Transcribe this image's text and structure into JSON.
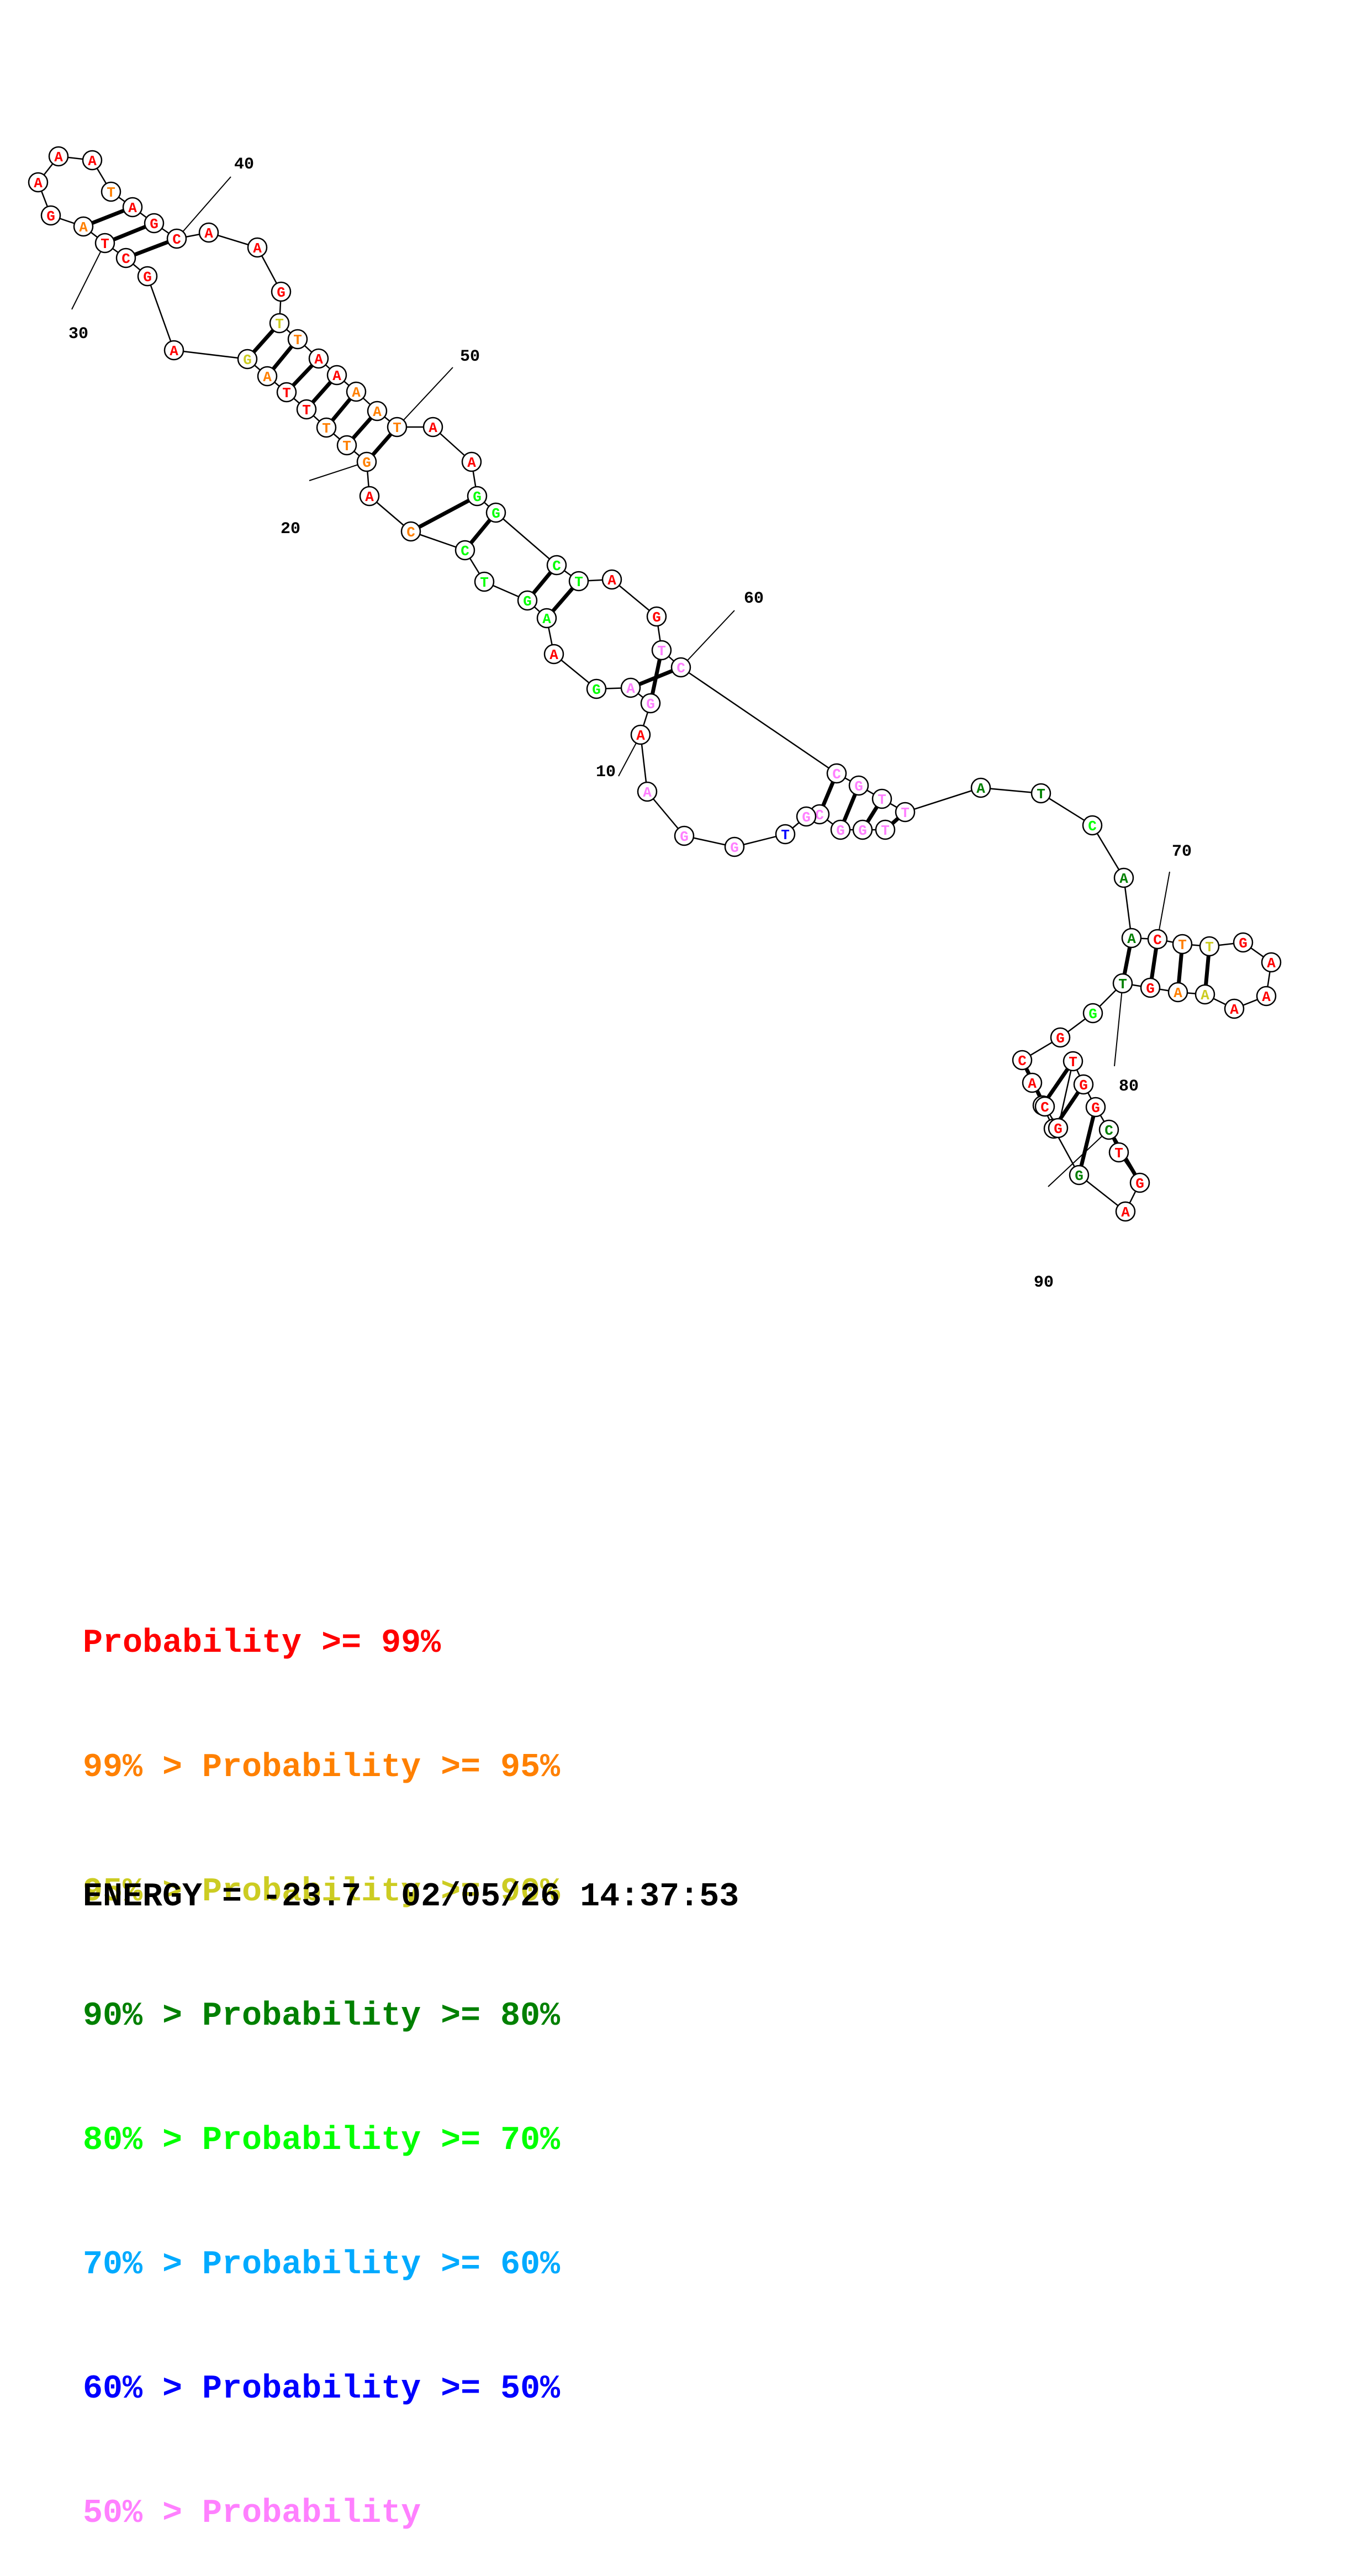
{
  "structure": {
    "nucleotides": [
      {
        "n": 1,
        "base": "T",
        "color": "pink"
      },
      {
        "n": 2,
        "base": "G",
        "color": "pink"
      },
      {
        "n": 3,
        "base": "G",
        "color": "pink"
      },
      {
        "n": 4,
        "base": "C",
        "color": "pink"
      },
      {
        "n": 5,
        "base": "G",
        "color": "pink"
      },
      {
        "n": 6,
        "base": "T",
        "color": "blue"
      },
      {
        "n": 7,
        "base": "G",
        "color": "pink"
      },
      {
        "n": 8,
        "base": "G",
        "color": "pink"
      },
      {
        "n": 9,
        "base": "A",
        "color": "pink"
      },
      {
        "n": 10,
        "base": "A",
        "color": "red"
      },
      {
        "n": 11,
        "base": "G",
        "color": "pink"
      },
      {
        "n": 12,
        "base": "A",
        "color": "pink"
      },
      {
        "n": 13,
        "base": "G",
        "color": "light_green"
      },
      {
        "n": 14,
        "base": "A",
        "color": "red"
      },
      {
        "n": 15,
        "base": "A",
        "color": "light_green"
      },
      {
        "n": 16,
        "base": "G",
        "color": "light_green"
      },
      {
        "n": 17,
        "base": "T",
        "color": "light_green"
      },
      {
        "n": 18,
        "base": "C",
        "color": "light_green"
      },
      {
        "n": 19,
        "base": "C",
        "color": "orange"
      },
      {
        "n": 20,
        "base": "A",
        "color": "red"
      },
      {
        "n": 21,
        "base": "G",
        "color": "orange"
      },
      {
        "n": 22,
        "base": "T",
        "color": "orange"
      },
      {
        "n": 23,
        "base": "T",
        "color": "orange"
      },
      {
        "n": 24,
        "base": "T",
        "color": "red"
      },
      {
        "n": 25,
        "base": "T",
        "color": "red"
      },
      {
        "n": 26,
        "base": "A",
        "color": "orange"
      },
      {
        "n": 27,
        "base": "G",
        "color": "yellow"
      },
      {
        "n": 28,
        "base": "A",
        "color": "red"
      },
      {
        "n": 29,
        "base": "G",
        "color": "red"
      },
      {
        "n": 30,
        "base": "C",
        "color": "red"
      },
      {
        "n": 31,
        "base": "T",
        "color": "red"
      },
      {
        "n": 32,
        "base": "A",
        "color": "orange"
      },
      {
        "n": 33,
        "base": "G",
        "color": "red"
      },
      {
        "n": 34,
        "base": "A",
        "color": "red"
      },
      {
        "n": 35,
        "base": "A",
        "color": "red"
      },
      {
        "n": 36,
        "base": "A",
        "color": "red"
      },
      {
        "n": 37,
        "base": "T",
        "color": "orange"
      },
      {
        "n": 38,
        "base": "A",
        "color": "red"
      },
      {
        "n": 39,
        "base": "G",
        "color": "red"
      },
      {
        "n": 40,
        "base": "C",
        "color": "red"
      },
      {
        "n": 41,
        "base": "A",
        "color": "red"
      },
      {
        "n": 42,
        "base": "A",
        "color": "red"
      },
      {
        "n": 43,
        "base": "G",
        "color": "red"
      },
      {
        "n": 44,
        "base": "T",
        "color": "yellow"
      },
      {
        "n": 45,
        "base": "T",
        "color": "orange"
      },
      {
        "n": 46,
        "base": "A",
        "color": "red"
      },
      {
        "n": 47,
        "base": "A",
        "color": "red"
      },
      {
        "n": 48,
        "base": "A",
        "color": "orange"
      },
      {
        "n": 49,
        "base": "A",
        "color": "orange"
      },
      {
        "n": 50,
        "base": "T",
        "color": "orange"
      },
      {
        "n": 51,
        "base": "A",
        "color": "red"
      },
      {
        "n": 52,
        "base": "A",
        "color": "red"
      },
      {
        "n": 53,
        "base": "G",
        "color": "light_green"
      },
      {
        "n": 54,
        "base": "G",
        "color": "light_green"
      },
      {
        "n": 55,
        "base": "C",
        "color": "light_green"
      },
      {
        "n": 56,
        "base": "T",
        "color": "light_green"
      },
      {
        "n": 57,
        "base": "A",
        "color": "red"
      },
      {
        "n": 58,
        "base": "G",
        "color": "red"
      },
      {
        "n": 59,
        "base": "T",
        "color": "pink"
      },
      {
        "n": 60,
        "base": "C",
        "color": "pink"
      },
      {
        "n": 61,
        "base": "C",
        "color": "pink"
      },
      {
        "n": 62,
        "base": "G",
        "color": "pink"
      },
      {
        "n": 63,
        "base": "T",
        "color": "pink"
      },
      {
        "n": 64,
        "base": "T",
        "color": "pink"
      },
      {
        "n": 65,
        "base": "A",
        "color": "dark_green"
      },
      {
        "n": 66,
        "base": "T",
        "color": "dark_green"
      },
      {
        "n": 67,
        "base": "C",
        "color": "light_green"
      },
      {
        "n": 68,
        "base": "A",
        "color": "dark_green"
      },
      {
        "n": 69,
        "base": "A",
        "color": "dark_green"
      },
      {
        "n": 70,
        "base": "C",
        "color": "red"
      },
      {
        "n": 71,
        "base": "T",
        "color": "orange"
      },
      {
        "n": 72,
        "base": "T",
        "color": "yellow"
      },
      {
        "n": 73,
        "base": "G",
        "color": "red"
      },
      {
        "n": 74,
        "base": "A",
        "color": "red"
      },
      {
        "n": 75,
        "base": "A",
        "color": "red"
      },
      {
        "n": 76,
        "base": "A",
        "color": "red"
      },
      {
        "n": 77,
        "base": "A",
        "color": "yellow"
      },
      {
        "n": 78,
        "base": "A",
        "color": "orange"
      },
      {
        "n": 79,
        "base": "G",
        "color": "red"
      },
      {
        "n": 80,
        "base": "T",
        "color": "dark_green"
      },
      {
        "n": 81,
        "base": "G",
        "color": "light_green"
      },
      {
        "n": 82,
        "base": "G",
        "color": "red"
      },
      {
        "n": 83,
        "base": "C",
        "color": "red"
      },
      {
        "n": 84,
        "base": "A",
        "color": "red"
      },
      {
        "n": 85,
        "base": "C",
        "color": "red"
      },
      {
        "n": 86,
        "base": "C",
        "color": "red"
      },
      {
        "n": 87,
        "base": "G",
        "color": "dark_green"
      },
      {
        "n": 88,
        "base": "A",
        "color": "red"
      },
      {
        "n": 89,
        "base": "G",
        "color": "red"
      },
      {
        "n": 90,
        "base": "T",
        "color": "red"
      },
      {
        "n": 91,
        "base": "C",
        "color": "dark_green"
      },
      {
        "n": 92,
        "base": "G",
        "color": "red"
      },
      {
        "n": 93,
        "base": "G",
        "color": "red"
      },
      {
        "n": 94,
        "base": "T",
        "color": "red"
      },
      {
        "n": 95,
        "base": "G",
        "color": "red"
      },
      {
        "n": 96,
        "base": "C",
        "color": "red"
      }
    ],
    "pairs": [
      [
        1,
        64
      ],
      [
        2,
        63
      ],
      [
        3,
        62
      ],
      [
        4,
        61
      ],
      [
        11,
        59
      ],
      [
        12,
        60
      ],
      [
        15,
        56
      ],
      [
        16,
        55
      ],
      [
        18,
        54
      ],
      [
        19,
        53
      ],
      [
        21,
        50
      ],
      [
        22,
        49
      ],
      [
        23,
        48
      ],
      [
        24,
        47
      ],
      [
        25,
        46
      ],
      [
        26,
        45
      ],
      [
        27,
        44
      ],
      [
        30,
        40
      ],
      [
        31,
        39
      ],
      [
        32,
        38
      ],
      [
        69,
        80
      ],
      [
        70,
        79
      ],
      [
        71,
        78
      ],
      [
        72,
        77
      ],
      [
        83,
        96
      ],
      [
        85,
        94
      ],
      [
        86,
        93
      ],
      [
        87,
        92
      ],
      [
        89,
        91
      ]
    ],
    "position_labels": [
      "10",
      "20",
      "30",
      "40",
      "50",
      "60",
      "70",
      "80",
      "90"
    ]
  },
  "colors": {
    "red": "#ff0000",
    "orange": "#ff8000",
    "yellow": "#cccc22",
    "dark_green": "#008000",
    "light_green": "#00ff00",
    "sky_blue": "#00aaff",
    "blue": "#0000ff",
    "pink": "#ff80ff"
  },
  "legend": [
    {
      "prefix": "",
      "label": "Probability >= 99%",
      "color": "red"
    },
    {
      "prefix": "99% > ",
      "label": "Probability >= 95%",
      "color": "orange"
    },
    {
      "prefix": "95% > ",
      "label": "Probability >= 90%",
      "color": "yellow"
    },
    {
      "prefix": "90% > ",
      "label": "Probability >= 80%",
      "color": "dark_green"
    },
    {
      "prefix": "80% > ",
      "label": "Probability >= 70%",
      "color": "light_green"
    },
    {
      "prefix": "70% > ",
      "label": "Probability >= 60%",
      "color": "sky_blue"
    },
    {
      "prefix": "60% > ",
      "label": "Probability >= 50%",
      "color": "blue"
    },
    {
      "prefix": "50% > ",
      "label": "Probability",
      "color": "pink"
    }
  ],
  "footer": {
    "energy": "ENERGY = -23.7",
    "timestamp": "02/05/26 14:37:53"
  }
}
